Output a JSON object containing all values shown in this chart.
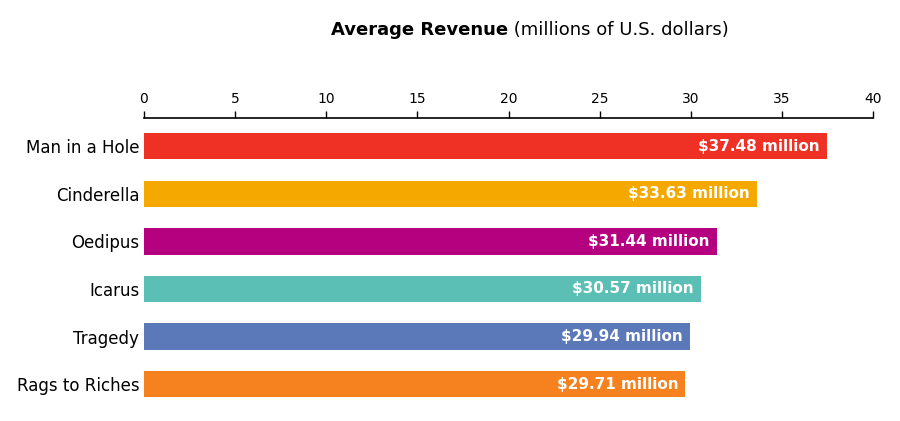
{
  "categories": [
    "Man in a Hole",
    "Cinderella",
    "Oedipus",
    "Icarus",
    "Tragedy",
    "Rags to Riches"
  ],
  "values": [
    37.48,
    33.63,
    31.44,
    30.57,
    29.94,
    29.71
  ],
  "labels": [
    "$37.48 million",
    "$33.63 million",
    "$31.44 million",
    "$30.57 million",
    "$29.94 million",
    "$29.71 million"
  ],
  "colors": [
    "#EE3124",
    "#F5A800",
    "#B5007F",
    "#5BBFB5",
    "#5B78B8",
    "#F5821F"
  ],
  "title_bold": "Average Revenue",
  "title_normal": " (millions of U.S. dollars)",
  "xlim": [
    0,
    40
  ],
  "xticks": [
    0,
    5,
    10,
    15,
    20,
    25,
    30,
    35,
    40
  ],
  "background_color": "#FFFFFF",
  "bar_label_fontsize": 11,
  "category_fontsize": 12,
  "title_fontsize": 13
}
